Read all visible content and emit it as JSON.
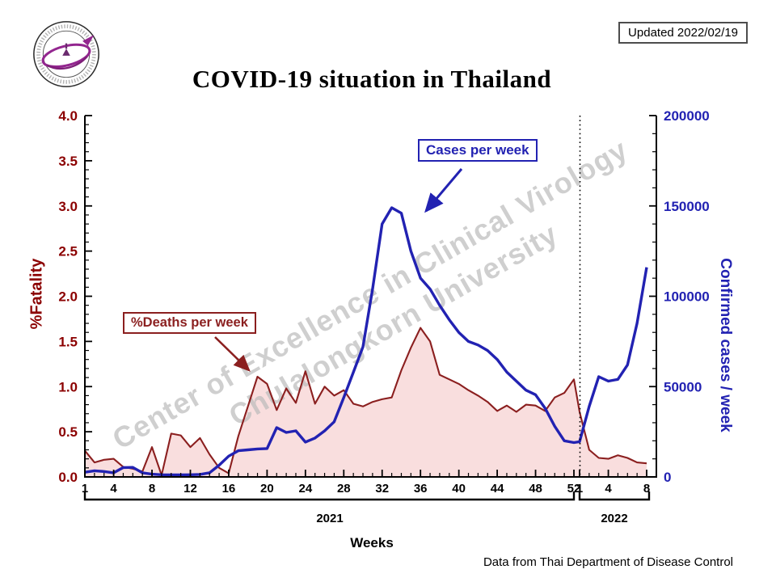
{
  "header": {
    "title": "COVID-19 situation in Thailand",
    "updated": "Updated 2022/02/19"
  },
  "watermark": {
    "line1": "Center of Excellence in Clinical Virology",
    "line2": "Chulalongkorn University"
  },
  "footer": {
    "year_2021": "2021",
    "year_2022": "2022",
    "xlabel": "Weeks",
    "source": "Data from Thai Department of Disease Control"
  },
  "chart_data": {
    "type": "line",
    "title": "COVID-19 situation in Thailand",
    "xlabel": "Weeks",
    "ylabel_left": "%Fatality",
    "ylabel_right": "Confirmed cases / week",
    "x_axis": {
      "unit": "week",
      "segments": [
        {
          "year": "2021",
          "weeks": 52,
          "labeled_ticks": [
            1,
            4,
            8,
            12,
            16,
            20,
            24,
            28,
            32,
            36,
            40,
            44,
            48,
            52
          ]
        },
        {
          "year": "2022",
          "weeks": 8,
          "labeled_ticks": [
            1,
            4,
            8
          ]
        }
      ]
    },
    "y_left": {
      "min": 0,
      "max": 4,
      "tick_step": 0.5,
      "minor_step": 0.1,
      "tick_labels": [
        "0.0",
        "0.5",
        "1.0",
        "1.5",
        "2.0",
        "2.5",
        "3.0",
        "3.5",
        "4.0"
      ]
    },
    "y_right": {
      "min": 0,
      "max": 200000,
      "tick_step": 50000,
      "minor_step": 10000,
      "tick_labels": [
        "0",
        "50000",
        "100000",
        "150000",
        "200000"
      ]
    },
    "divider_after_2021": true,
    "annotations": {
      "cases_label": "Cases per week",
      "deaths_label": "%Deaths per week"
    },
    "series": [
      {
        "name": "%Deaths per week",
        "axis": "left",
        "style": "line-filled",
        "values": [
          0.29,
          0.16,
          0.19,
          0.2,
          0.11,
          0.09,
          0.06,
          0.33,
          0.02,
          0.48,
          0.46,
          0.33,
          0.43,
          0.25,
          0.1,
          0.04,
          0.45,
          0.78,
          1.11,
          1.03,
          0.74,
          0.98,
          0.82,
          1.17,
          0.81,
          1.0,
          0.9,
          0.96,
          0.81,
          0.78,
          0.83,
          0.86,
          0.88,
          1.18,
          1.43,
          1.65,
          1.5,
          1.13,
          1.08,
          1.03,
          0.96,
          0.9,
          0.83,
          0.73,
          0.79,
          0.72,
          0.8,
          0.79,
          0.73,
          0.88,
          0.93,
          1.08,
          0.72,
          0.3,
          0.21,
          0.2,
          0.24,
          0.21,
          0.16,
          0.15
        ]
      },
      {
        "name": "Cases per week",
        "axis": "right",
        "style": "line",
        "values": [
          2600,
          3400,
          3000,
          2300,
          5200,
          5300,
          2300,
          1500,
          1200,
          1100,
          1100,
          1200,
          1400,
          2300,
          6500,
          11500,
          14500,
          15000,
          15500,
          15700,
          27300,
          24600,
          25500,
          19300,
          21500,
          25500,
          30500,
          44000,
          58000,
          72000,
          104000,
          140000,
          149000,
          146000,
          125000,
          110000,
          104000,
          95000,
          87000,
          80000,
          75000,
          73000,
          70000,
          65000,
          58000,
          53000,
          48000,
          45500,
          38000,
          28000,
          20000,
          19000,
          19500,
          39000,
          55500,
          53000,
          54000,
          62000,
          85000,
          116000
        ]
      }
    ],
    "colors": {
      "deaths_line": "#8b1f1f",
      "deaths_fill": "#f9dede",
      "deaths_text": "#8b0000",
      "cases_line": "#2222b2",
      "axis": "#000000",
      "watermark": "#bbbbbb"
    }
  }
}
